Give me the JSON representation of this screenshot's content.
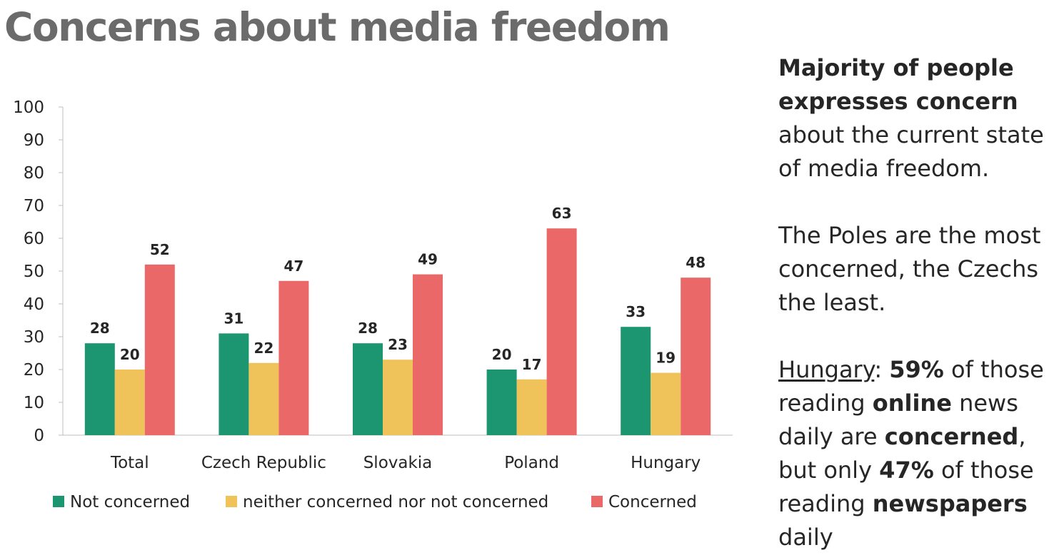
{
  "title": "Concerns about media freedom",
  "colors": {
    "not_concerned": "#1b9671",
    "neither": "#f0c35a",
    "concerned": "#eb6869",
    "axis": "#bfbfbf",
    "text": "#262626"
  },
  "chart_data": {
    "type": "bar",
    "categories": [
      "Total",
      "Czech Republic",
      "Slovakia",
      "Poland",
      "Hungary"
    ],
    "series": [
      {
        "name": "Not concerned",
        "values": [
          28,
          31,
          28,
          20,
          33
        ]
      },
      {
        "name": "neither concerned nor not concerned",
        "values": [
          20,
          22,
          23,
          17,
          19
        ]
      },
      {
        "name": "Concerned",
        "values": [
          52,
          47,
          49,
          63,
          48
        ]
      }
    ],
    "yticks": [
      0,
      10,
      20,
      30,
      40,
      50,
      60,
      70,
      80,
      90,
      100
    ],
    "ylim": [
      0,
      100
    ],
    "grid": false,
    "legend": "bottom",
    "data_labels": true
  },
  "sidebar": {
    "p1_bold": "Majority of people expresses concern",
    "p1_rest": " about the current state of media freedom.",
    "p2": "The Poles are the most concerned, the Czechs the least.",
    "p3_country": "Hungary",
    "p3_colon": ": ",
    "p3_pct1": "59%",
    "p3_t1": " of those reading ",
    "p3_online": "online",
    "p3_t2": " news daily are ",
    "p3_concerned": "concerned",
    "p3_t3": ", but only ",
    "p3_pct2": "47%",
    "p3_t4": " of those reading ",
    "p3_newspapers": "newspapers",
    "p3_t5": " daily"
  }
}
